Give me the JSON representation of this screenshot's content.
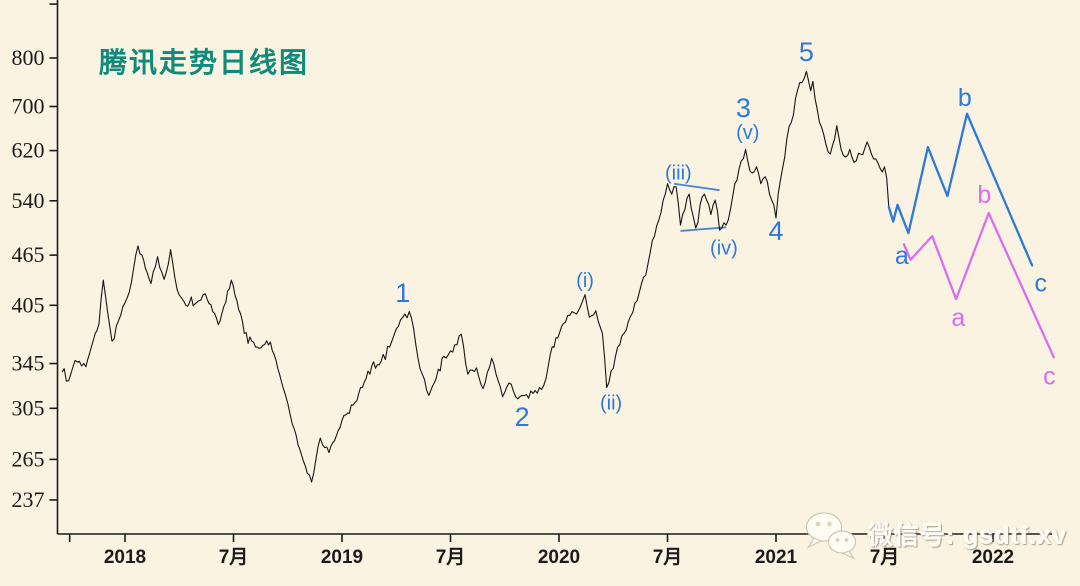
{
  "title": "腾讯走势日线图",
  "watermark": {
    "text": "微信号: gsdtf.xv"
  },
  "colors": {
    "background": "#faf3e1",
    "axis": "#1b1b1b",
    "tick_label": "#1b1b1b",
    "price": "#161616",
    "blue": "#2e78d9",
    "magenta": "#d76ef2",
    "title": "#0f8a7b"
  },
  "chart_data": {
    "type": "line",
    "title": "腾讯走势日线图",
    "grid": false,
    "y_axis": {
      "scale": "log",
      "ticks": [
        {
          "label": "",
          "value": 928
        },
        {
          "label": "800",
          "value": 800
        },
        {
          "label": "700",
          "value": 700
        },
        {
          "label": "620",
          "value": 620
        },
        {
          "label": "540",
          "value": 540
        },
        {
          "label": "465",
          "value": 465
        },
        {
          "label": "405",
          "value": 405
        },
        {
          "label": "345",
          "value": 345
        },
        {
          "label": "305",
          "value": 305
        },
        {
          "label": "265",
          "value": 265
        },
        {
          "label": "237",
          "value": 237
        }
      ]
    },
    "x_axis": {
      "ticks": [
        {
          "label": "",
          "t": 2017.745
        },
        {
          "label": "2018",
          "t": 2018
        },
        {
          "label": "7月",
          "t": 2018.5
        },
        {
          "label": "2019",
          "t": 2019
        },
        {
          "label": "7月",
          "t": 2019.5
        },
        {
          "label": "2020",
          "t": 2020
        },
        {
          "label": "7月",
          "t": 2020.5
        },
        {
          "label": "2021",
          "t": 2021
        },
        {
          "label": "7月",
          "t": 2021.5
        },
        {
          "label": "2022",
          "t": 2022
        }
      ]
    },
    "series": [
      {
        "name": "price",
        "style": "noisy-daily",
        "color": "#161616",
        "points": [
          [
            2017.71,
            337
          ],
          [
            2017.74,
            329
          ],
          [
            2017.77,
            348
          ],
          [
            2017.82,
            342
          ],
          [
            2017.88,
            385
          ],
          [
            2017.9,
            434
          ],
          [
            2017.94,
            367
          ],
          [
            2017.98,
            394
          ],
          [
            2018.02,
            420
          ],
          [
            2018.06,
            477
          ],
          [
            2018.12,
            430
          ],
          [
            2018.15,
            463
          ],
          [
            2018.18,
            435
          ],
          [
            2018.21,
            472
          ],
          [
            2018.24,
            423
          ],
          [
            2018.28,
            405
          ],
          [
            2018.34,
            410
          ],
          [
            2018.37,
            418
          ],
          [
            2018.43,
            384
          ],
          [
            2018.49,
            434
          ],
          [
            2018.55,
            375
          ],
          [
            2018.61,
            361
          ],
          [
            2018.67,
            366
          ],
          [
            2018.73,
            322
          ],
          [
            2018.78,
            288
          ],
          [
            2018.84,
            255
          ],
          [
            2018.86,
            249
          ],
          [
            2018.9,
            281
          ],
          [
            2018.94,
            270
          ],
          [
            2019.0,
            295
          ],
          [
            2019.06,
            310
          ],
          [
            2019.12,
            338
          ],
          [
            2019.18,
            347
          ],
          [
            2019.23,
            367
          ],
          [
            2019.28,
            392
          ],
          [
            2019.31,
            398
          ],
          [
            2019.33,
            380
          ],
          [
            2019.36,
            340
          ],
          [
            2019.4,
            316
          ],
          [
            2019.47,
            352
          ],
          [
            2019.51,
            356
          ],
          [
            2019.55,
            374
          ],
          [
            2019.58,
            335
          ],
          [
            2019.62,
            341
          ],
          [
            2019.65,
            322
          ],
          [
            2019.69,
            350
          ],
          [
            2019.74,
            315
          ],
          [
            2019.77,
            327
          ],
          [
            2019.81,
            313
          ],
          [
            2019.83,
            316
          ],
          [
            2019.87,
            320
          ],
          [
            2019.9,
            318
          ],
          [
            2019.94,
            331
          ],
          [
            2019.96,
            354
          ],
          [
            2020.02,
            385
          ],
          [
            2020.05,
            394
          ],
          [
            2020.09,
            399
          ],
          [
            2020.12,
            417
          ],
          [
            2020.14,
            392
          ],
          [
            2020.17,
            399
          ],
          [
            2020.2,
            375
          ],
          [
            2020.22,
            323
          ],
          [
            2020.24,
            338
          ],
          [
            2020.27,
            361
          ],
          [
            2020.3,
            375
          ],
          [
            2020.34,
            397
          ],
          [
            2020.36,
            410
          ],
          [
            2020.4,
            440
          ],
          [
            2020.43,
            484
          ],
          [
            2020.46,
            512
          ],
          [
            2020.48,
            541
          ],
          [
            2020.5,
            566
          ],
          [
            2020.52,
            550
          ],
          [
            2020.54,
            561
          ],
          [
            2020.56,
            505
          ],
          [
            2020.58,
            527
          ],
          [
            2020.6,
            550
          ],
          [
            2020.63,
            501
          ],
          [
            2020.65,
            534
          ],
          [
            2020.67,
            550
          ],
          [
            2020.7,
            520
          ],
          [
            2020.72,
            541
          ],
          [
            2020.74,
            498
          ],
          [
            2020.77,
            505
          ],
          [
            2020.79,
            527
          ],
          [
            2020.81,
            566
          ],
          [
            2020.83,
            590
          ],
          [
            2020.86,
            622
          ],
          [
            2020.87,
            602
          ],
          [
            2020.89,
            583
          ],
          [
            2020.91,
            593
          ],
          [
            2020.93,
            566
          ],
          [
            2020.95,
            577
          ],
          [
            2020.97,
            550
          ],
          [
            2020.99,
            534
          ],
          [
            2021.0,
            515
          ],
          [
            2021.01,
            550
          ],
          [
            2021.03,
            590
          ],
          [
            2021.05,
            640
          ],
          [
            2021.08,
            684
          ],
          [
            2021.1,
            733
          ],
          [
            2021.14,
            771
          ],
          [
            2021.16,
            731
          ],
          [
            2021.17,
            750
          ],
          [
            2021.19,
            695
          ],
          [
            2021.21,
            661
          ],
          [
            2021.23,
            631
          ],
          [
            2021.25,
            614
          ],
          [
            2021.27,
            640
          ],
          [
            2021.28,
            664
          ],
          [
            2021.3,
            622
          ],
          [
            2021.32,
            609
          ],
          [
            2021.34,
            622
          ],
          [
            2021.36,
            600
          ],
          [
            2021.39,
            614
          ],
          [
            2021.41,
            625
          ],
          [
            2021.42,
            635
          ],
          [
            2021.44,
            614
          ],
          [
            2021.46,
            606
          ],
          [
            2021.48,
            590
          ],
          [
            2021.5,
            593
          ],
          [
            2021.51,
            575
          ],
          [
            2021.52,
            531
          ]
        ]
      },
      {
        "name": "blue-projection",
        "style": "smooth",
        "color": "#2e78d9",
        "points": [
          [
            2021.52,
            531
          ],
          [
            2021.54,
            510
          ],
          [
            2021.56,
            534
          ],
          [
            2021.61,
            494
          ],
          [
            2021.7,
            626
          ],
          [
            2021.79,
            547
          ],
          [
            2021.88,
            686
          ],
          [
            2022.18,
            452
          ]
        ]
      },
      {
        "name": "magenta-projection",
        "style": "smooth",
        "color": "#d76ef2",
        "points": [
          [
            2021.59,
            479
          ],
          [
            2021.62,
            459
          ],
          [
            2021.72,
            490
          ],
          [
            2021.83,
            412
          ],
          [
            2021.98,
            522
          ],
          [
            2022.28,
            351
          ]
        ]
      }
    ],
    "trendlines": [
      {
        "name": "wave-iv-upper-trendline",
        "color": "#4a86d8",
        "points": [
          [
            2020.53,
            566
          ],
          [
            2020.74,
            556
          ]
        ]
      },
      {
        "name": "wave-iv-lower-trendline",
        "color": "#4a86d8",
        "points": [
          [
            2020.56,
            497
          ],
          [
            2020.77,
            502
          ]
        ]
      }
    ],
    "wave_labels": [
      {
        "text": "1",
        "t": 2019.28,
        "price": 419,
        "color": "blue",
        "size": "lg"
      },
      {
        "text": "2",
        "t": 2019.83,
        "price": 298,
        "color": "blue",
        "size": "lg"
      },
      {
        "text": "(i)",
        "t": 2020.12,
        "price": 434,
        "color": "blue",
        "size": "sm"
      },
      {
        "text": "(ii)",
        "t": 2020.24,
        "price": 310,
        "color": "blue",
        "size": "sm"
      },
      {
        "text": "(iii)",
        "t": 2020.55,
        "price": 584,
        "color": "blue",
        "size": "sm"
      },
      {
        "text": "(iv)",
        "t": 2020.76,
        "price": 475,
        "color": "blue",
        "size": "sm"
      },
      {
        "text": "3",
        "t": 2020.85,
        "price": 697,
        "color": "blue",
        "size": "lg"
      },
      {
        "text": "(v)",
        "t": 2020.87,
        "price": 653,
        "color": "blue",
        "size": "sm"
      },
      {
        "text": "4",
        "t": 2021.0,
        "price": 497,
        "color": "blue",
        "size": "lg"
      },
      {
        "text": "5",
        "t": 2021.14,
        "price": 813,
        "color": "blue",
        "size": "lg"
      },
      {
        "text": "a",
        "t": 2021.58,
        "price": 465,
        "color": "blue",
        "size": "md"
      },
      {
        "text": "b",
        "t": 2021.87,
        "price": 719,
        "color": "blue",
        "size": "md"
      },
      {
        "text": "c",
        "t": 2022.22,
        "price": 431,
        "color": "blue",
        "size": "md"
      },
      {
        "text": "a",
        "t": 2021.84,
        "price": 392,
        "color": "magenta",
        "size": "md"
      },
      {
        "text": "b",
        "t": 2021.96,
        "price": 550,
        "color": "magenta",
        "size": "md"
      },
      {
        "text": "c",
        "t": 2022.26,
        "price": 334,
        "color": "magenta",
        "size": "md"
      }
    ]
  }
}
